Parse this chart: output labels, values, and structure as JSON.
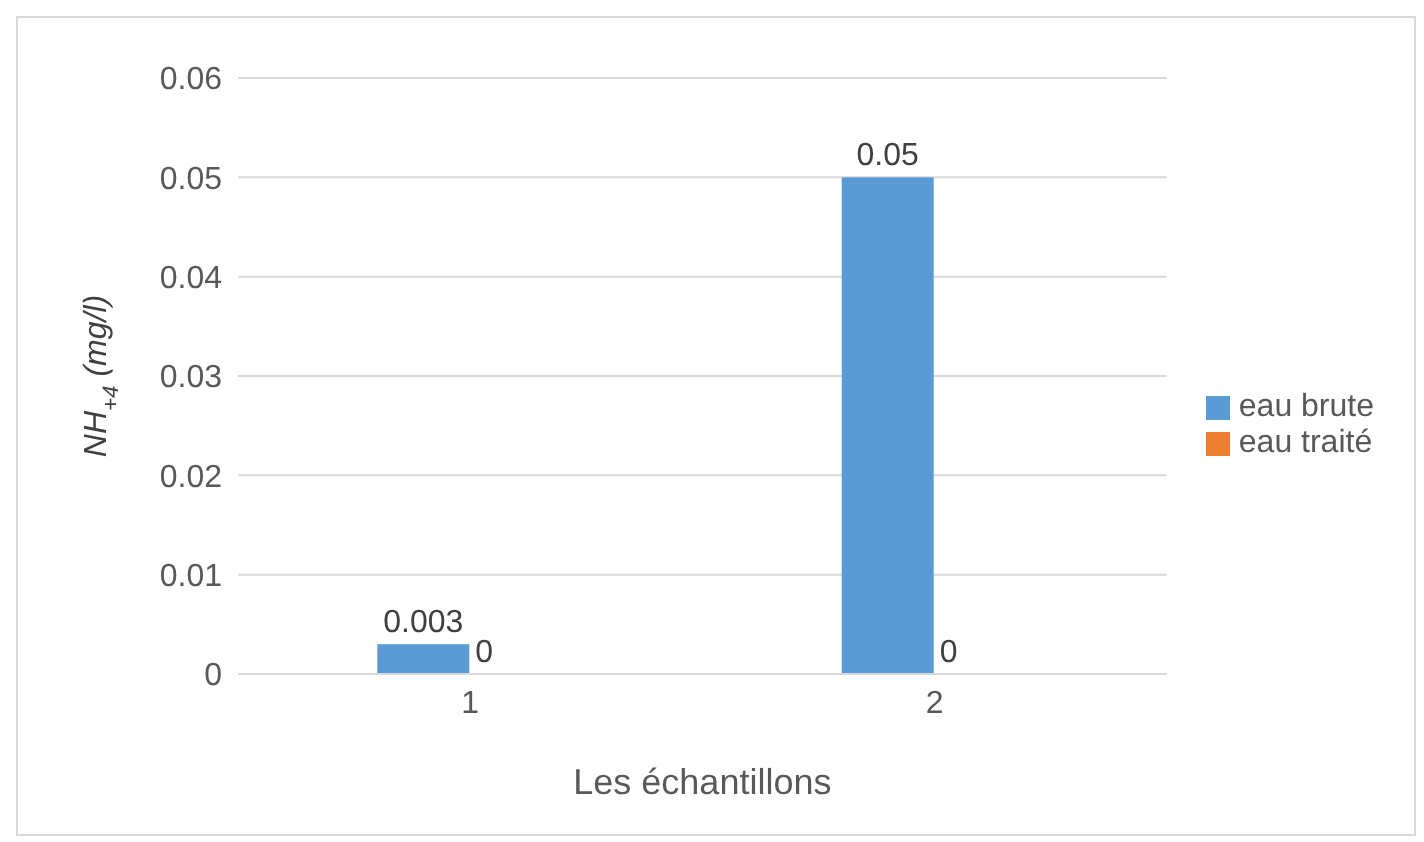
{
  "chart_data": {
    "type": "bar",
    "xlabel": "Les échantillons",
    "ylabel": "NH$_{+4}$ (mg/l)",
    "categories": [
      "1",
      "2"
    ],
    "series": [
      {
        "name": "eau brute",
        "color": "#5b9bd5",
        "values": [
          0.003,
          0.05
        ]
      },
      {
        "name": "eau traité",
        "color": "#ed7d31",
        "values": [
          0,
          0
        ]
      }
    ],
    "ylim": [
      0,
      0.06
    ],
    "yticks": [
      0,
      0.01,
      0.02,
      0.03,
      0.04,
      0.05,
      0.06
    ],
    "grid": "y",
    "legend": "right",
    "data_labels": true
  }
}
